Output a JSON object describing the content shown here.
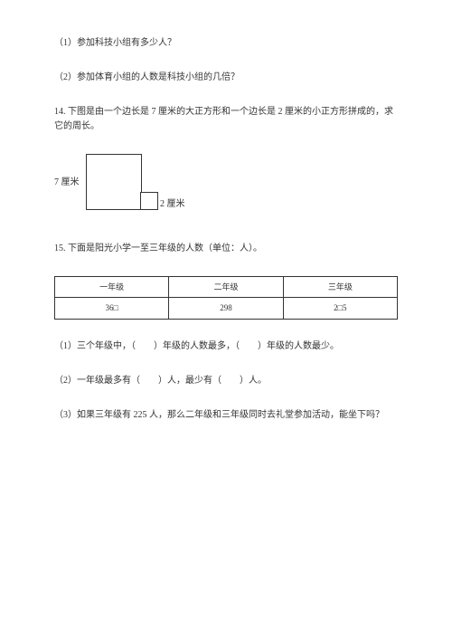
{
  "q13_1": "（1）参加科技小组有多少人？",
  "q13_2": "（2）参加体育小组的人数是科技小组的几倍？",
  "q14_text": "14. 下图是由一个边长是 7 厘米的大正方形和一个边长是 2 厘米的小正方形拼成的，求它的周长。",
  "q14_label7": "7 厘米",
  "q14_label2": "2 厘米",
  "q15_text": "15. 下面是阳光小学一至三年级的人数（单位：人）。",
  "table": {
    "headers": [
      "一年级",
      "二年级",
      "三年级"
    ],
    "row": [
      "36□",
      "298",
      "2□5"
    ]
  },
  "q15_1": "（1）三个年级中，（　　）年级的人数最多，（　　）年级的人数最少。",
  "q15_2": "（2）一年级最多有（　　）人，最少有（　　）人。",
  "q15_3": "（3）如果三年级有 225 人，那么二年级和三年级同时去礼堂参加活动，能坐下吗？"
}
